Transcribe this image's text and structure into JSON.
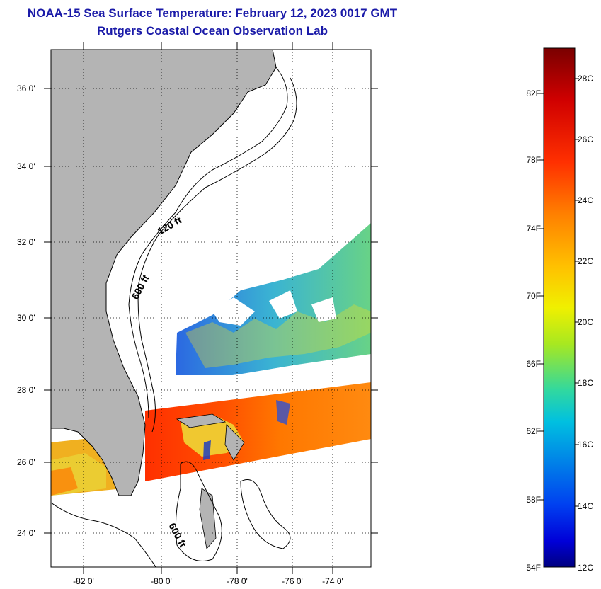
{
  "header": {
    "title": "NOAA-15 Sea Surface Temperature:  February 12, 2023 0017 GMT",
    "subtitle": "Rutgers Coastal Ocean Observation Lab"
  },
  "map": {
    "lat_range": [
      23,
      37
    ],
    "lon_range": [
      -83,
      -73
    ],
    "lat_ticks": [
      {
        "value": 36,
        "label": "36 0'"
      },
      {
        "value": 34,
        "label": "34 0'"
      },
      {
        "value": 32,
        "label": "32 0'"
      },
      {
        "value": 30,
        "label": "30 0'"
      },
      {
        "value": 28,
        "label": "28 0'"
      },
      {
        "value": 26,
        "label": "26 0'"
      },
      {
        "value": 24,
        "label": "24 0'"
      }
    ],
    "lon_ticks": [
      {
        "value": -82,
        "label": "-82 0'"
      },
      {
        "value": -80,
        "label": "-80 0'"
      },
      {
        "value": -78,
        "label": "-78 0'"
      },
      {
        "value": -76,
        "label": "-76 0'"
      },
      {
        "value": -74,
        "label": "-74 0'"
      }
    ],
    "contour_labels": [
      "120 ft",
      "600 ft",
      "600 ft"
    ],
    "colors": {
      "land": "#b4b4b4",
      "background": "#ffffff",
      "grid": "#000000"
    }
  },
  "colorbar": {
    "fahrenheit_labels": [
      "82F",
      "78F",
      "74F",
      "70F",
      "66F",
      "62F",
      "58F",
      "54F"
    ],
    "celsius_labels": [
      "28C",
      "26C",
      "24C",
      "22C",
      "20C",
      "18C",
      "16C",
      "14C",
      "12C"
    ],
    "colors": [
      "#7a0000",
      "#c80000",
      "#ff2a00",
      "#ff7a00",
      "#ffb000",
      "#ffe800",
      "#d8f000",
      "#80e040",
      "#20d0b0",
      "#00b0f0",
      "#0070e0",
      "#0020f0",
      "#000090"
    ]
  }
}
